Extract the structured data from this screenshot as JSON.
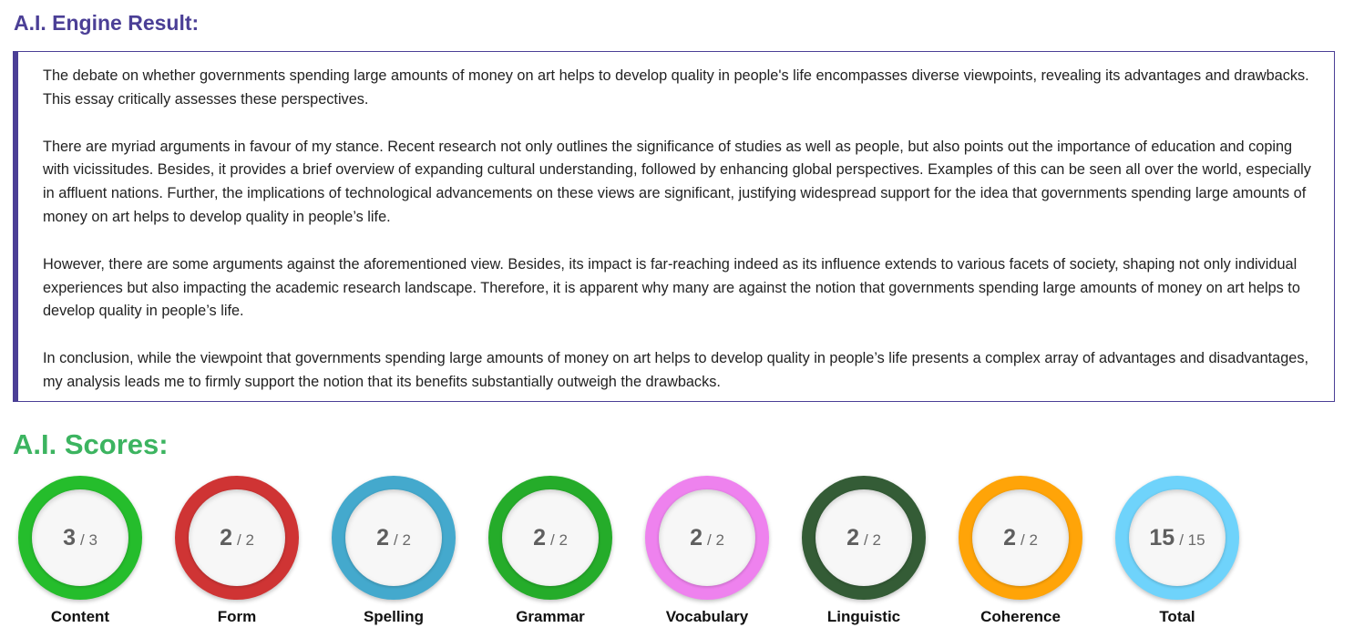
{
  "result_title": "A.I. Engine Result:",
  "essay_paragraphs": [
    "The debate on whether governments spending large amounts of money on art helps to develop quality in people's life encompasses diverse viewpoints, revealing its advantages and drawbacks. This essay critically assesses these perspectives.",
    "There are myriad arguments in favour of my stance. Recent research not only outlines the significance of studies as well as people, but also points out the importance of education and coping with vicissitudes. Besides, it provides a brief overview of expanding cultural understanding, followed by enhancing global perspectives. Examples of this can be seen all over the world, especially in affluent nations. Further, the implications of technological advancements on these views are significant, justifying widespread support for the idea that governments spending large amounts of money on art helps to develop quality in people’s life.",
    "However, there are some arguments against the aforementioned view. Besides, its impact is far-reaching indeed as its influence extends to various facets of society, shaping not only individual experiences but also impacting the academic research landscape. Therefore, it is apparent why many are against the notion that governments spending large amounts of money on art helps to develop quality in people’s life.",
    "In conclusion, while the viewpoint that governments spending large amounts of money on art helps to develop quality in people’s life presents a complex array of advantages and disadvantages, my analysis leads me to firmly support the notion that its benefits substantially outweigh the drawbacks."
  ],
  "scores_title": "A.I. Scores:",
  "scores": [
    {
      "label": "Content",
      "value": "3",
      "max": "/ 3",
      "color": "#25bd2c"
    },
    {
      "label": "Form",
      "value": "2",
      "max": "/ 2",
      "color": "#cf3434"
    },
    {
      "label": "Spelling",
      "value": "2",
      "max": "/ 2",
      "color": "#44a9cd"
    },
    {
      "label": "Grammar",
      "value": "2",
      "max": "/ 2",
      "color": "#25ac2a"
    },
    {
      "label": "Vocabulary",
      "value": "2",
      "max": "/ 2",
      "color": "#ee82ee"
    },
    {
      "label": "Linguistic",
      "value": "2",
      "max": "/ 2",
      "color": "#345c36"
    },
    {
      "label": "Coherence",
      "value": "2",
      "max": "/ 2",
      "color": "#ffa408"
    },
    {
      "label": "Total",
      "value": "15",
      "max": "/ 15",
      "color": "#6fd3fb"
    }
  ]
}
